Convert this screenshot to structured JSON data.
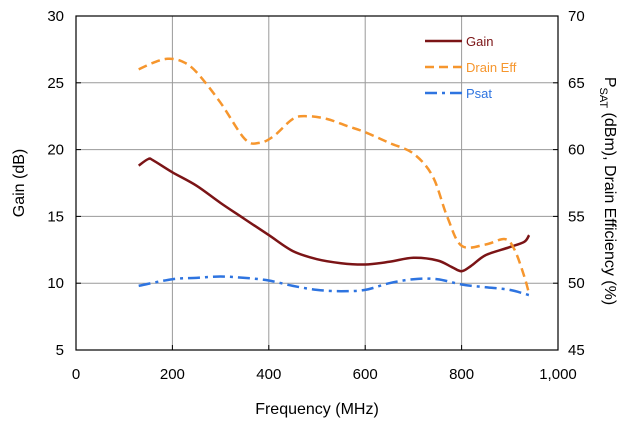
{
  "chart_data": {
    "type": "line",
    "title": "",
    "xlabel": "Frequency (MHz)",
    "ylabel_left": "Gain (dB)",
    "ylabel_right_prefix": "P",
    "ylabel_right_sub": "SAT",
    "ylabel_right_suffix": " (dBm), Drain Efficiency (%)",
    "xlim": [
      0,
      1000
    ],
    "ylim_left": [
      5,
      30
    ],
    "ylim_right": [
      45,
      70
    ],
    "x_ticks": [
      0,
      200,
      400,
      600,
      800,
      1000
    ],
    "x_tick_labels": [
      "0",
      "200",
      "400",
      "600",
      "800",
      "1,000"
    ],
    "y_left_ticks": [
      5,
      10,
      15,
      20,
      25,
      30
    ],
    "y_left_tick_labels": [
      "5",
      "10",
      "15",
      "20",
      "25",
      "30"
    ],
    "y_right_ticks": [
      45,
      50,
      55,
      60,
      65,
      70
    ],
    "y_right_tick_labels": [
      "45",
      "50",
      "55",
      "60",
      "65",
      "70"
    ],
    "grid": true,
    "legend_position": "top-right",
    "series": [
      {
        "name": "Gain",
        "axis": "left",
        "color": "#7b1416",
        "dash": "solid",
        "x": [
          130,
          150,
          160,
          200,
          250,
          300,
          350,
          400,
          450,
          500,
          550,
          600,
          650,
          700,
          750,
          780,
          800,
          820,
          850,
          900,
          930,
          940
        ],
        "y": [
          18.8,
          19.3,
          19.2,
          18.3,
          17.3,
          16.0,
          14.8,
          13.6,
          12.4,
          11.8,
          11.5,
          11.4,
          11.6,
          11.9,
          11.7,
          11.2,
          10.9,
          11.3,
          12.1,
          12.7,
          13.1,
          13.6
        ]
      },
      {
        "name": "Drain Eff",
        "axis": "right",
        "color": "#f6962d",
        "dash": "dashed",
        "x": [
          130,
          160,
          190,
          220,
          250,
          300,
          350,
          380,
          410,
          450,
          480,
          520,
          560,
          600,
          650,
          700,
          740,
          770,
          800,
          850,
          890,
          910,
          930,
          940
        ],
        "y": [
          66.0,
          66.5,
          66.8,
          66.6,
          65.8,
          63.5,
          60.8,
          60.5,
          61.0,
          62.3,
          62.5,
          62.3,
          61.8,
          61.3,
          60.5,
          59.7,
          58.0,
          55.0,
          52.8,
          52.9,
          53.3,
          52.5,
          50.5,
          49.2
        ]
      },
      {
        "name": "Psat",
        "axis": "right",
        "color": "#2e74e0",
        "dash": "dashdot",
        "x": [
          130,
          200,
          250,
          300,
          350,
          400,
          450,
          500,
          550,
          600,
          650,
          700,
          750,
          800,
          850,
          900,
          940
        ],
        "y": [
          49.8,
          50.3,
          50.4,
          50.5,
          50.4,
          50.2,
          49.8,
          49.5,
          49.4,
          49.5,
          50.0,
          50.3,
          50.3,
          49.9,
          49.7,
          49.5,
          49.1
        ]
      }
    ]
  }
}
